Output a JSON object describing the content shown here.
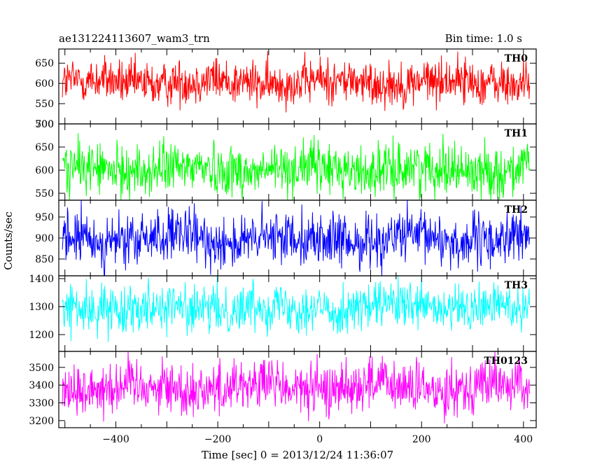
{
  "chart_data": {
    "type": "line",
    "title": "ae131224113607_wam3_trn",
    "subtitle": "Bin time: 1.0 s",
    "xlabel": "Time [sec] 0 = 2013/12/24 11:36:07",
    "ylabel": "Counts/sec",
    "xlim": [
      -512,
      425
    ],
    "xticks": [
      -400,
      -200,
      0,
      200,
      400
    ],
    "x_start": -505,
    "x_end": 412,
    "x_step": 1,
    "panels": [
      {
        "name": "TH0",
        "color": "#ff0000",
        "ylim": [
          500,
          685
        ],
        "yticks": [
          500,
          550,
          600,
          650
        ],
        "mean": 603,
        "spread": 28,
        "wander": 6
      },
      {
        "name": "TH1",
        "color": "#00ff00",
        "ylim": [
          535,
          700
        ],
        "yticks": [
          550,
          600,
          650,
          700
        ],
        "mean": 602,
        "spread": 28,
        "wander": 6
      },
      {
        "name": "TH2",
        "color": "#0000ff",
        "ylim": [
          810,
          990
        ],
        "yticks": [
          850,
          900,
          950
        ],
        "mean": 897,
        "spread": 32,
        "wander": 8
      },
      {
        "name": "TH3",
        "color": "#00ffff",
        "ylim": [
          1140,
          1410
        ],
        "yticks": [
          1200,
          1300,
          1400
        ],
        "mean": 1296,
        "spread": 42,
        "wander": 10
      },
      {
        "name": "TH0123",
        "color": "#ff00ff",
        "ylim": [
          3160,
          3590
        ],
        "yticks": [
          3200,
          3300,
          3400,
          3500
        ],
        "mean": 3390,
        "spread": 75,
        "wander": 20
      }
    ]
  }
}
